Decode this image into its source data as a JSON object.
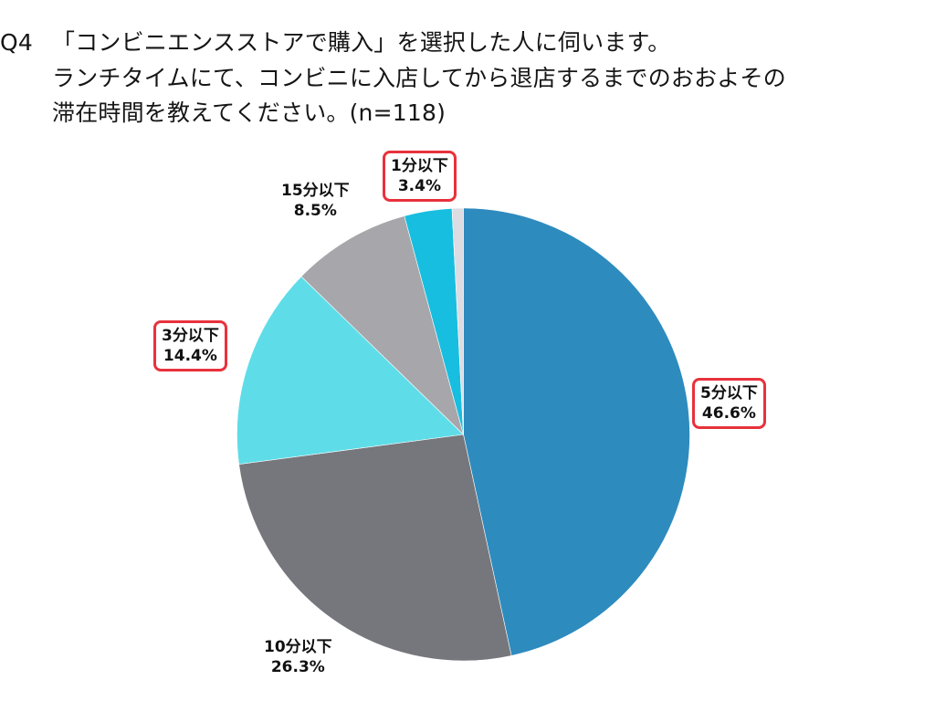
{
  "title": {
    "q_number": "Q4",
    "line1": "「コンビニエンスストアで購入」を選択した人に伺います。",
    "line2": "ランチタイムにて、コンビニに入店してから退店するまでのおおよその",
    "line3": "滞在時間を教えてください。(n=118)"
  },
  "chart_data": {
    "type": "pie",
    "title": "Q4 「コンビニエンスストアで購入」を選択した人に伺います。ランチタイムにて、コンビニに入店してから退店するまでのおおよその滞在時間を教えてください。(n=118)",
    "n": 118,
    "start_angle_deg": 0,
    "direction": "clockwise",
    "categories": [
      "5分以下",
      "10分以下",
      "3分以下",
      "15分以下",
      "1分以下",
      ""
    ],
    "values": [
      46.6,
      26.3,
      14.4,
      8.5,
      3.4,
      0.8
    ],
    "colors": [
      "#2E8BBE",
      "#76777C",
      "#5EDDE8",
      "#A7A6AB",
      "#17BEDF",
      "#DCDCE2"
    ],
    "labels": [
      {
        "name": "5分以下",
        "value": "46.6%",
        "highlighted": true
      },
      {
        "name": "10分以下",
        "value": "26.3%",
        "highlighted": false
      },
      {
        "name": "3分以下",
        "value": "14.4%",
        "highlighted": true
      },
      {
        "name": "15分以下",
        "value": "8.5%",
        "highlighted": false
      },
      {
        "name": "1分以下",
        "value": "3.4%",
        "highlighted": true
      }
    ],
    "highlight_color": "#E8323C"
  }
}
